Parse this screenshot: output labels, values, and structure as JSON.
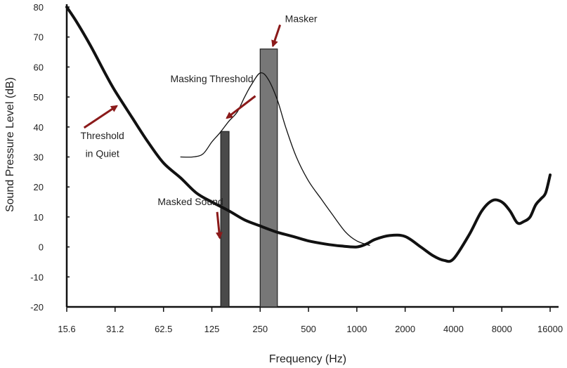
{
  "chart_data": {
    "type": "line",
    "title": "",
    "xlabel": "Frequency (Hz)",
    "ylabel": "Sound Pressure Level (dB)",
    "x_scale": "log2",
    "x_ticks": [
      "15.6",
      "31.2",
      "62.5",
      "125",
      "250",
      "500",
      "1000",
      "2000",
      "4000",
      "8000",
      "16000"
    ],
    "x_tick_values": [
      15.6,
      31.2,
      62.5,
      125,
      250,
      500,
      1000,
      2000,
      4000,
      8000,
      16000
    ],
    "y_ticks": [
      "80",
      "70",
      "60",
      "50",
      "40",
      "30",
      "20",
      "10",
      "0",
      "-10",
      "-20"
    ],
    "y_tick_values": [
      80,
      70,
      60,
      50,
      40,
      30,
      20,
      10,
      0,
      -10,
      -20
    ],
    "ylim": [
      -20,
      80
    ],
    "grid": false,
    "series": [
      {
        "name": "Threshold in Quiet",
        "color": "#111111",
        "x": [
          15.6,
          18,
          22,
          27,
          31.2,
          40,
          50,
          62.5,
          80,
          100,
          125,
          160,
          200,
          250,
          315,
          400,
          500,
          630,
          800,
          1000,
          1150,
          1300,
          1600,
          2000,
          2500,
          3000,
          3500,
          4000,
          5000,
          6000,
          7000,
          8000,
          9000,
          10000,
          11000,
          12000,
          13000,
          14000,
          15000,
          16000
        ],
        "y": [
          80,
          75,
          67,
          58,
          52,
          43,
          35,
          28,
          23,
          18,
          15,
          12,
          9,
          7,
          5,
          3.5,
          2,
          1,
          0.3,
          0,
          1,
          2.5,
          3.8,
          3.5,
          0,
          -3,
          -4.5,
          -4,
          4,
          12,
          15.5,
          15,
          12,
          8,
          8.5,
          10,
          14,
          16,
          18,
          24
        ]
      },
      {
        "name": "Masking Threshold",
        "color": "#111111",
        "x": [
          80,
          95,
          110,
          125,
          140,
          160,
          180,
          200,
          220,
          250,
          280,
          320,
          360,
          420,
          500,
          600,
          700,
          850,
          1000,
          1200
        ],
        "y": [
          30,
          30,
          31,
          35,
          38,
          42,
          45,
          50,
          54,
          58,
          56,
          49,
          40,
          30,
          22,
          16,
          11,
          5,
          2,
          0.5
        ]
      }
    ],
    "bars": [
      {
        "name": "Masked Sound",
        "x_from": 142,
        "x_to": 160,
        "bottom": -20,
        "top": 38.5,
        "color": "#4a4a4a"
      },
      {
        "name": "Masker",
        "x_from": 250,
        "x_to": 320,
        "bottom": -20,
        "top": 66,
        "color": "#777777"
      }
    ],
    "annotations": [
      {
        "text": "Masker",
        "x": 450,
        "y": 75,
        "arrow_to_x": 300,
        "arrow_to_y": 67
      },
      {
        "text": "Masking Threshold",
        "x": 125,
        "y": 55,
        "arrow_to_x": 155,
        "arrow_to_y": 43
      },
      {
        "text": "Threshold",
        "x": 26,
        "y": 36,
        "arrow_to_x": 32,
        "arrow_to_y": 47
      },
      {
        "text": "in Quiet",
        "x": 26,
        "y": 30
      },
      {
        "text": "Masked Sound",
        "x": 92,
        "y": 14,
        "arrow_to_x": 140,
        "arrow_to_y": 3
      }
    ],
    "arrow_color": "#8b1a1a"
  }
}
